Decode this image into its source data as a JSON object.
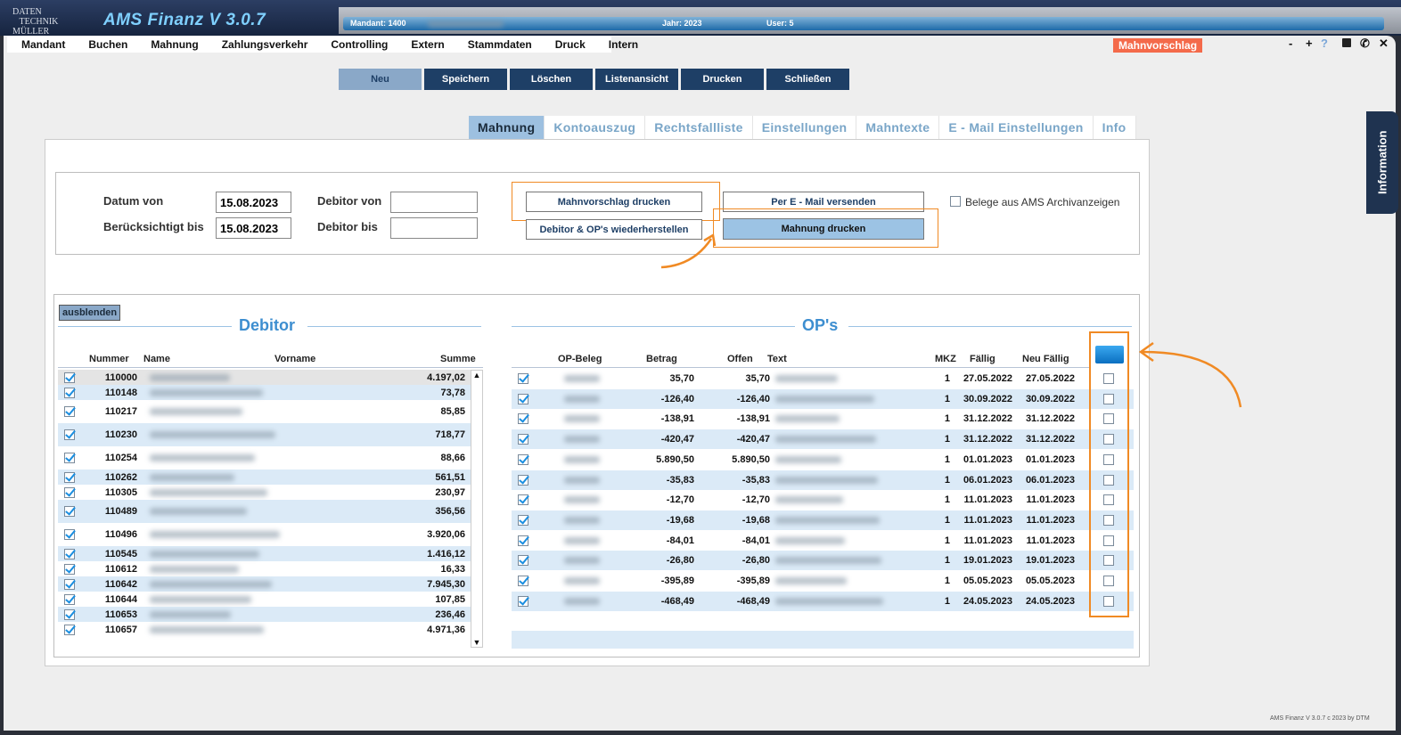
{
  "app": {
    "logo_text": "DATENTECHNIK MÜLLER",
    "title": "AMS Finanz V 3.0.7",
    "mandant_label": "Mandant: 1400",
    "jahr_label": "Jahr: 2023",
    "user_label": "User: 5",
    "footer": "AMS Finanz V 3.0.7 c  2023 by DTM"
  },
  "menu": [
    "Mandant",
    "Buchen",
    "Mahnung",
    "Zahlungsverkehr",
    "Controlling",
    "Extern",
    "Stammdaten",
    "Druck",
    "Intern"
  ],
  "badge": "Mahnvorschlag",
  "window_icons": [
    "minimize-icon",
    "plus-icon",
    "help-icon",
    "save-icon",
    "phone-icon",
    "close-icon"
  ],
  "toolbar": [
    "Neu",
    "Speichern",
    "Löschen",
    "Listenansicht",
    "Drucken",
    "Schließen"
  ],
  "tabs": [
    "Mahnung",
    "Kontoauszug",
    "Rechtsfallliste",
    "Einstellungen",
    "Mahntexte",
    "E - Mail Einstellungen",
    "Info"
  ],
  "side_tab": "Information",
  "filter": {
    "datum_von_label": "Datum von",
    "datum_von": "15.08.2023",
    "beruecksichtigt_label": "Berücksichtigt bis",
    "beruecksichtigt": "15.08.2023",
    "debitor_von_label": "Debitor von",
    "debitor_von": "",
    "debitor_bis_label": "Debitor bis",
    "debitor_bis": "",
    "btn_mahnvorschlag": "Mahnvorschlag drucken",
    "btn_email": "Per E - Mail versenden",
    "btn_wiederherstellen": "Debitor & OP's wiederherstellen",
    "btn_mahnung": "Mahnung drucken",
    "archiv_label": "Belege aus AMS Archivanzeigen"
  },
  "debitor": {
    "hide_button": "ausblenden",
    "title": "Debitor",
    "columns": [
      "Nummer",
      "Name",
      "Vorname",
      "Summe"
    ],
    "rows": [
      {
        "nummer": "110000",
        "summe": "4.197,02"
      },
      {
        "nummer": "110148",
        "summe": "73,78"
      },
      {
        "nummer": "110217",
        "summe": "85,85"
      },
      {
        "nummer": "110230",
        "summe": "718,77"
      },
      {
        "nummer": "110254",
        "summe": "88,66"
      },
      {
        "nummer": "110262",
        "summe": "561,51"
      },
      {
        "nummer": "110305",
        "summe": "230,97"
      },
      {
        "nummer": "110489",
        "summe": "356,56"
      },
      {
        "nummer": "110496",
        "summe": "3.920,06"
      },
      {
        "nummer": "110545",
        "summe": "1.416,12"
      },
      {
        "nummer": "110612",
        "summe": "16,33"
      },
      {
        "nummer": "110642",
        "summe": "7.945,30"
      },
      {
        "nummer": "110644",
        "summe": "107,85"
      },
      {
        "nummer": "110653",
        "summe": "236,46"
      },
      {
        "nummer": "110657",
        "summe": "4.971,36"
      }
    ]
  },
  "ops": {
    "title": "OP's",
    "columns": [
      "OP-Beleg",
      "Betrag",
      "Offen",
      "Text",
      "MKZ",
      "Fällig",
      "Neu Fällig"
    ],
    "rows": [
      {
        "betrag": "35,70",
        "offen": "35,70",
        "mkz": "1",
        "faellig": "27.05.2022",
        "neu": "27.05.2022"
      },
      {
        "betrag": "-126,40",
        "offen": "-126,40",
        "mkz": "1",
        "faellig": "30.09.2022",
        "neu": "30.09.2022"
      },
      {
        "betrag": "-138,91",
        "offen": "-138,91",
        "mkz": "1",
        "faellig": "31.12.2022",
        "neu": "31.12.2022"
      },
      {
        "betrag": "-420,47",
        "offen": "-420,47",
        "mkz": "1",
        "faellig": "31.12.2022",
        "neu": "31.12.2022"
      },
      {
        "betrag": "5.890,50",
        "offen": "5.890,50",
        "mkz": "1",
        "faellig": "01.01.2023",
        "neu": "01.01.2023"
      },
      {
        "betrag": "-35,83",
        "offen": "-35,83",
        "mkz": "1",
        "faellig": "06.01.2023",
        "neu": "06.01.2023"
      },
      {
        "betrag": "-12,70",
        "offen": "-12,70",
        "mkz": "1",
        "faellig": "11.01.2023",
        "neu": "11.01.2023"
      },
      {
        "betrag": "-19,68",
        "offen": "-19,68",
        "mkz": "1",
        "faellig": "11.01.2023",
        "neu": "11.01.2023"
      },
      {
        "betrag": "-84,01",
        "offen": "-84,01",
        "mkz": "1",
        "faellig": "11.01.2023",
        "neu": "11.01.2023"
      },
      {
        "betrag": "-26,80",
        "offen": "-26,80",
        "mkz": "1",
        "faellig": "19.01.2023",
        "neu": "19.01.2023"
      },
      {
        "betrag": "-395,89",
        "offen": "-395,89",
        "mkz": "1",
        "faellig": "05.05.2023",
        "neu": "05.05.2023"
      },
      {
        "betrag": "-468,49",
        "offen": "-468,49",
        "mkz": "1",
        "faellig": "24.05.2023",
        "neu": "24.05.2023"
      }
    ]
  },
  "colors": {
    "accent": "#3d8ed0",
    "toolbar": "#1e3f66",
    "badge": "#f46a4a",
    "highlight": "#f08a24",
    "row_alt": "#dbeaf7"
  }
}
